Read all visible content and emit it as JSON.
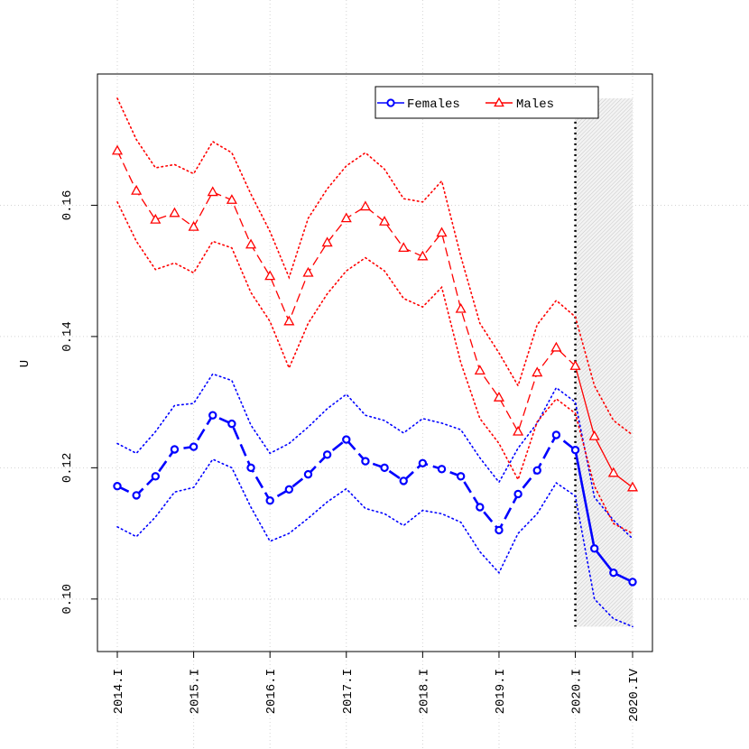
{
  "chart_data": {
    "type": "line",
    "xlabel": "",
    "ylabel": "U",
    "ylim": [
      0.092,
      0.18
    ],
    "yticks": [
      0.1,
      0.12,
      0.14,
      0.16
    ],
    "ytick_labels": [
      "0.10",
      "0.12",
      "0.14",
      "0.16"
    ],
    "xtick_labels": [
      "2014.I",
      "2015.I",
      "2016.I",
      "2017.I",
      "2018.I",
      "2019.I",
      "2020.I",
      "2020.IV"
    ],
    "xtick_positions": [
      "2014.I",
      "2015.I",
      "2016.I",
      "2017.I",
      "2018.I",
      "2019.I",
      "2020.I",
      "2020.IV"
    ],
    "x": [
      "2014.I",
      "2014.II",
      "2014.III",
      "2014.IV",
      "2015.I",
      "2015.II",
      "2015.III",
      "2015.IV",
      "2016.I",
      "2016.II",
      "2016.III",
      "2016.IV",
      "2017.I",
      "2017.II",
      "2017.III",
      "2017.IV",
      "2018.I",
      "2018.II",
      "2018.III",
      "2018.IV",
      "2019.I",
      "2019.II",
      "2019.III",
      "2019.IV",
      "2020.I",
      "2020.II",
      "2020.III",
      "2020.IV"
    ],
    "grid": true,
    "legend_position": "top-right",
    "forecast_start": "2020.I",
    "forecast_region": [
      "2020.I",
      "2020.IV"
    ],
    "series": [
      {
        "name": "Females",
        "color": "#0000ff",
        "marker": "circle",
        "values": [
          0.1172,
          0.1158,
          0.1187,
          0.1228,
          0.1232,
          0.128,
          0.1267,
          0.12,
          0.115,
          0.1167,
          0.119,
          0.122,
          0.1243,
          0.121,
          0.12,
          0.118,
          0.1207,
          0.1198,
          0.1187,
          0.114,
          0.1105,
          0.116,
          0.1196,
          0.125,
          0.1227,
          0.1077,
          0.104,
          0.1026
        ],
        "upper": [
          0.1237,
          0.1222,
          0.1255,
          0.1295,
          0.1298,
          0.1343,
          0.1333,
          0.1265,
          0.1222,
          0.1237,
          0.1262,
          0.129,
          0.1312,
          0.128,
          0.1272,
          0.1253,
          0.1275,
          0.1268,
          0.1258,
          0.1215,
          0.1178,
          0.123,
          0.1268,
          0.1322,
          0.13,
          0.1155,
          0.112,
          0.1092
        ],
        "lower": [
          0.111,
          0.1095,
          0.1125,
          0.1163,
          0.117,
          0.1213,
          0.12,
          0.114,
          0.1088,
          0.11,
          0.1123,
          0.1148,
          0.1168,
          0.1138,
          0.113,
          0.1112,
          0.1135,
          0.113,
          0.1117,
          0.1072,
          0.104,
          0.11,
          0.113,
          0.1177,
          0.1157,
          0.1,
          0.097,
          0.0958
        ]
      },
      {
        "name": "Males",
        "color": "#ff0000",
        "marker": "triangle",
        "values": [
          0.1683,
          0.1622,
          0.1578,
          0.1588,
          0.1567,
          0.162,
          0.1608,
          0.154,
          0.1492,
          0.1423,
          0.1497,
          0.1543,
          0.158,
          0.1598,
          0.1575,
          0.1535,
          0.1522,
          0.1558,
          0.1442,
          0.1348,
          0.1307,
          0.1255,
          0.1345,
          0.1383,
          0.1355,
          0.1248,
          0.1192,
          0.117
        ],
        "upper": [
          0.1763,
          0.17,
          0.1657,
          0.1662,
          0.1648,
          0.1697,
          0.168,
          0.1617,
          0.156,
          0.149,
          0.158,
          0.1625,
          0.166,
          0.168,
          0.1655,
          0.161,
          0.1605,
          0.1637,
          0.1522,
          0.142,
          0.1375,
          0.1325,
          0.1418,
          0.1455,
          0.143,
          0.1325,
          0.1272,
          0.125
        ],
        "lower": [
          0.1605,
          0.1545,
          0.1502,
          0.1512,
          0.1497,
          0.1545,
          0.1535,
          0.1467,
          0.1423,
          0.1352,
          0.142,
          0.1465,
          0.15,
          0.152,
          0.15,
          0.1458,
          0.1445,
          0.1475,
          0.136,
          0.1275,
          0.1237,
          0.1182,
          0.127,
          0.1305,
          0.1283,
          0.1172,
          0.1115,
          0.11
        ]
      }
    ]
  }
}
